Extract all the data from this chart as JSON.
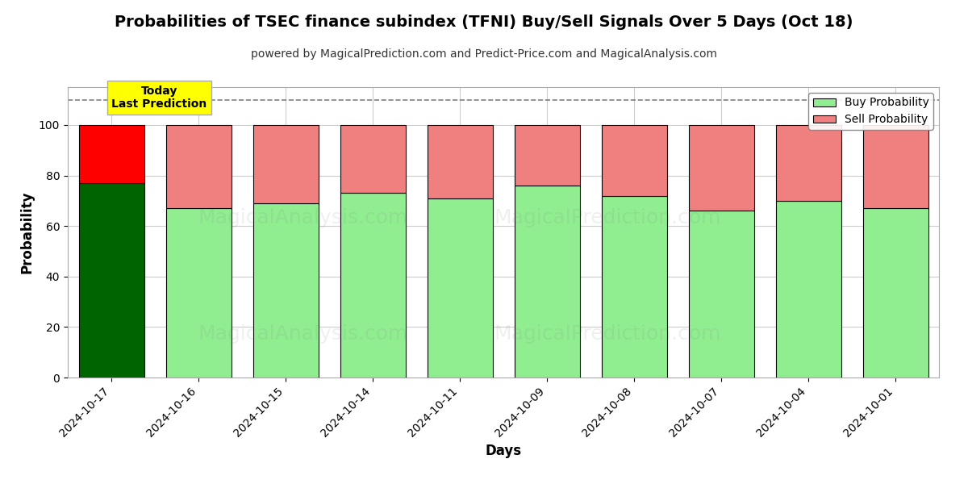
{
  "title": "Probabilities of TSEC finance subindex (TFNI) Buy/Sell Signals Over 5 Days (Oct 18)",
  "subtitle": "powered by MagicalPrediction.com and Predict-Price.com and MagicalAnalysis.com",
  "xlabel": "Days",
  "ylabel": "Probability",
  "dates": [
    "2024-10-17",
    "2024-10-16",
    "2024-10-15",
    "2024-10-14",
    "2024-10-11",
    "2024-10-09",
    "2024-10-08",
    "2024-10-07",
    "2024-10-04",
    "2024-10-01"
  ],
  "buy_values": [
    77,
    67,
    69,
    73,
    71,
    76,
    72,
    66,
    70,
    67
  ],
  "sell_values": [
    23,
    33,
    31,
    27,
    29,
    24,
    28,
    34,
    30,
    33
  ],
  "today_buy_color": "#006400",
  "today_sell_color": "#FF0000",
  "buy_color": "#90EE90",
  "sell_color": "#F08080",
  "bar_edge_color": "#000000",
  "ylim": [
    0,
    115
  ],
  "yticks": [
    0,
    20,
    40,
    60,
    80,
    100
  ],
  "dashed_line_y": 110,
  "watermark_alpha": 0.12,
  "annotation_text": "Today\nLast Prediction",
  "annotation_bg": "#FFFF00",
  "legend_buy_label": "Buy Probability",
  "legend_sell_label": "Sell Probability",
  "grid_color": "#CCCCCC",
  "background_color": "#FFFFFF",
  "title_fontsize": 14,
  "subtitle_fontsize": 10,
  "label_fontsize": 12,
  "tick_fontsize": 10
}
